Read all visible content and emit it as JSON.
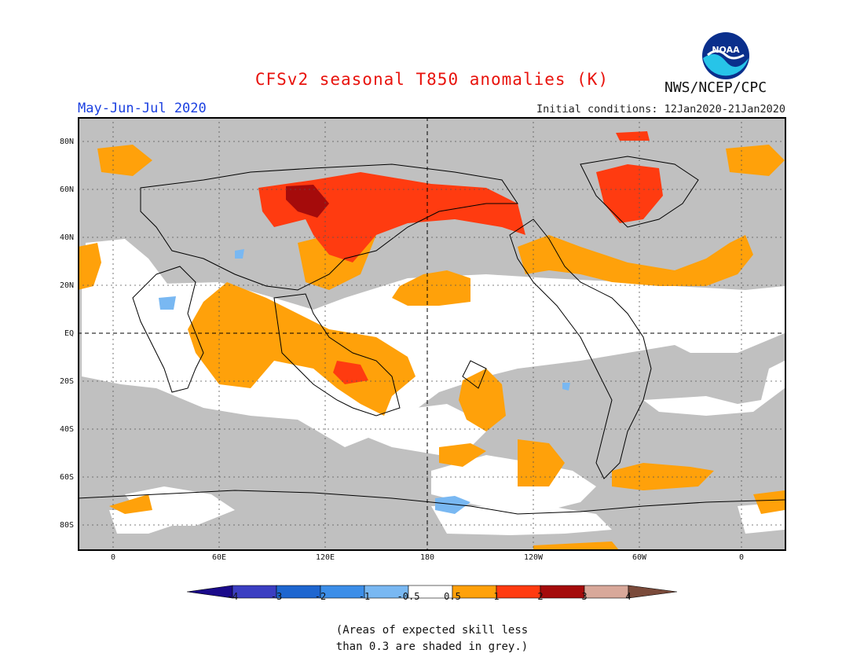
{
  "header": {
    "title": "CFSv2 seasonal T850 anomalies (K)",
    "period": "May-Jun-Jul 2020",
    "initial_conditions": "Initial conditions: 12Jan2020-21Jan2020",
    "org": "NWS/NCEP/CPC",
    "logo_text": "NOAA"
  },
  "axes": {
    "lat_labels": [
      "80N",
      "60N",
      "40N",
      "20N",
      "EQ",
      "20S",
      "40S",
      "60S",
      "80S"
    ],
    "lon_labels": [
      "0",
      "60E",
      "120E",
      "180",
      "120W",
      "60W",
      "0"
    ]
  },
  "colorbar": {
    "ticks": [
      "-4",
      "-3",
      "-2",
      "-1",
      "-0.5",
      "0.5",
      "1",
      "2",
      "3",
      "4"
    ],
    "colors": [
      "#1a0a8a",
      "#3b3ec2",
      "#1e66d0",
      "#3c8ee8",
      "#79b8f2",
      "#ffffff",
      "#ffa10a",
      "#ff3b10",
      "#a50b0b",
      "#d8a89a",
      "#7a4a3a"
    ]
  },
  "map_colors": {
    "grey": "#c0c0c0",
    "neutral": "#ffffff",
    "anom_0_5_1": "#ffa10a",
    "anom_1_2": "#ff3b10",
    "anom_2_3": "#a50b0b",
    "anom_neg": "#79b8f2"
  },
  "note": {
    "line1": "(Areas of expected skill less",
    "line2": "than 0.3 are shaded in grey.)"
  }
}
